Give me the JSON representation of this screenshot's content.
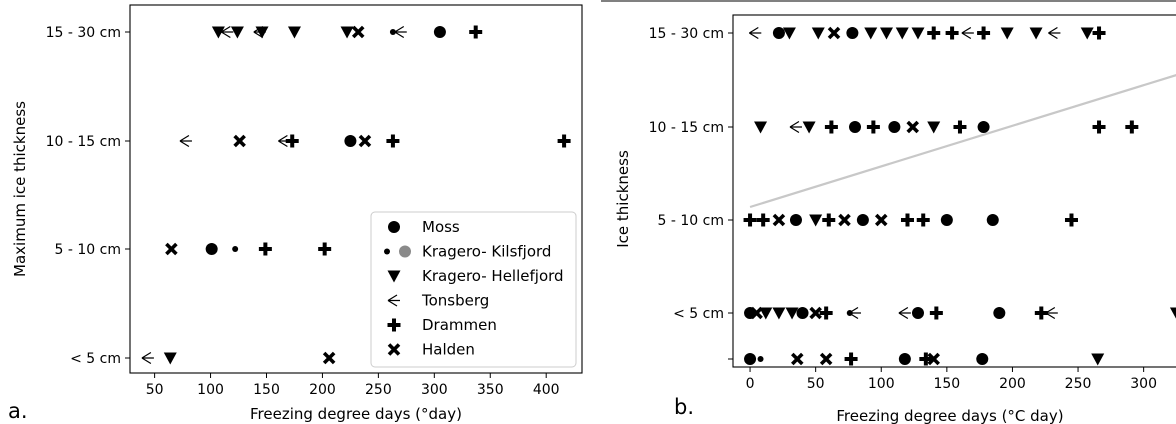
{
  "panel_labels": [
    "a.",
    "b."
  ],
  "marker_names": [
    "circle-marker",
    "small-circle-marker",
    "triangle-down-marker",
    "tri-left-marker",
    "plus-marker",
    "x-marker"
  ],
  "chart_data": [
    {
      "type": "scatter",
      "panel": "a.",
      "xlabel": "Freezing degree days (°day)",
      "ylabel": "Maximum ice thickness",
      "xlim": [
        28,
        432
      ],
      "x_ticks": [
        50,
        100,
        150,
        200,
        250,
        300,
        350,
        400
      ],
      "y_categories": [
        "< 5 cm",
        "5 - 10 cm",
        "10 - 15 cm",
        "15 - 30 cm"
      ],
      "grid": false,
      "legend": {
        "placement": "bottom-right",
        "entries": [
          "Moss",
          "Kragero- Kilsfjord",
          "Kragero- Hellefjord",
          "Tonsberg",
          "Drammen",
          "Halden"
        ]
      },
      "series": [
        {
          "name": "Moss",
          "marker": "circle",
          "points": [
            [
              101,
              "5 - 10 cm"
            ],
            [
              225,
              "10 - 15 cm"
            ],
            [
              305,
              "15 - 30 cm"
            ]
          ]
        },
        {
          "name": "Kragero- Kilsfjord",
          "marker": "small-circle",
          "points": [
            [
              122,
              "5 - 10 cm"
            ],
            [
              263,
              "15 - 30 cm"
            ]
          ]
        },
        {
          "name": "Kragero- Hellefjord",
          "marker": "triangle-down",
          "points": [
            [
              64,
              "< 5 cm"
            ],
            [
              107,
              "15 - 30 cm"
            ],
            [
              124,
              "15 - 30 cm"
            ],
            [
              146,
              "15 - 30 cm"
            ],
            [
              175,
              "15 - 30 cm"
            ],
            [
              222,
              "15 - 30 cm"
            ]
          ]
        },
        {
          "name": "Tonsberg",
          "marker": "tri-left",
          "points": [
            [
              44,
              "< 5 cm"
            ],
            [
              78,
              "10 - 15 cm"
            ],
            [
              115,
              "15 - 30 cm"
            ],
            [
              144,
              "15 - 30 cm"
            ],
            [
              166,
              "10 - 15 cm"
            ],
            [
              270,
              "15 - 30 cm"
            ]
          ]
        },
        {
          "name": "Drammen",
          "marker": "plus",
          "points": [
            [
              149,
              "5 - 10 cm"
            ],
            [
              173,
              "10 - 15 cm"
            ],
            [
              202,
              "5 - 10 cm"
            ],
            [
              263,
              "10 - 15 cm"
            ],
            [
              337,
              "15 - 30 cm"
            ],
            [
              416,
              "10 - 15 cm"
            ]
          ]
        },
        {
          "name": "Halden",
          "marker": "x",
          "points": [
            [
              65,
              "5 - 10 cm"
            ],
            [
              126,
              "10 - 15 cm"
            ],
            [
              206,
              "< 5 cm"
            ],
            [
              232,
              "15 - 30 cm"
            ],
            [
              238,
              "10 - 15 cm"
            ]
          ]
        }
      ]
    },
    {
      "type": "scatter",
      "panel": "b.",
      "xlabel": "Freezing degree days (°C day)",
      "ylabel": "Ice thickness",
      "xlim": [
        -13,
        330
      ],
      "x_ticks": [
        0,
        50,
        100,
        150,
        200,
        250,
        300
      ],
      "y_categories": [
        "",
        "< 5 cm",
        "5 - 10 cm",
        "10 - 15 cm",
        "15 - 30 cm"
      ],
      "grid": false,
      "trend_line": {
        "color": "#c8c8c8",
        "from": [
          0,
          5.9
        ],
        "to": [
          330,
          9.6
        ]
      },
      "points": [
        {
          "x": 0,
          "y": "< 5 cm",
          "marker": "circle"
        },
        {
          "x": 5,
          "y": "< 5 cm",
          "marker": "x"
        },
        {
          "x": 12,
          "y": "< 5 cm",
          "marker": "triangle-down"
        },
        {
          "x": 22,
          "y": "< 5 cm",
          "marker": "triangle-down"
        },
        {
          "x": 32,
          "y": "< 5 cm",
          "marker": "triangle-down"
        },
        {
          "x": 40,
          "y": "< 5 cm",
          "marker": "circle"
        },
        {
          "x": 50,
          "y": "< 5 cm",
          "marker": "x"
        },
        {
          "x": 58,
          "y": "< 5 cm",
          "marker": "plus"
        },
        {
          "x": 76,
          "y": "< 5 cm",
          "marker": "small-circle"
        },
        {
          "x": 80,
          "y": "< 5 cm",
          "marker": "tri-left"
        },
        {
          "x": 118,
          "y": "< 5 cm",
          "marker": "tri-left"
        },
        {
          "x": 128,
          "y": "< 5 cm",
          "marker": "circle"
        },
        {
          "x": 142,
          "y": "< 5 cm",
          "marker": "plus"
        },
        {
          "x": 190,
          "y": "< 5 cm",
          "marker": "circle"
        },
        {
          "x": 222,
          "y": "< 5 cm",
          "marker": "plus"
        },
        {
          "x": 230,
          "y": "< 5 cm",
          "marker": "tri-left"
        },
        {
          "x": 325,
          "y": "< 5 cm",
          "marker": "triangle-down"
        },
        {
          "x": 0,
          "y": "",
          "marker": "circle"
        },
        {
          "x": 8,
          "y": "",
          "marker": "small-circle"
        },
        {
          "x": 36,
          "y": "",
          "marker": "x"
        },
        {
          "x": 58,
          "y": "",
          "marker": "x"
        },
        {
          "x": 77,
          "y": "",
          "marker": "plus"
        },
        {
          "x": 118,
          "y": "",
          "marker": "circle"
        },
        {
          "x": 134,
          "y": "",
          "marker": "plus"
        },
        {
          "x": 140,
          "y": "",
          "marker": "x"
        },
        {
          "x": 177,
          "y": "",
          "marker": "circle"
        },
        {
          "x": 265,
          "y": "",
          "marker": "triangle-down"
        },
        {
          "x": 0,
          "y": "5 - 10 cm",
          "marker": "plus"
        },
        {
          "x": 10,
          "y": "5 - 10 cm",
          "marker": "plus"
        },
        {
          "x": 22,
          "y": "5 - 10 cm",
          "marker": "x"
        },
        {
          "x": 35,
          "y": "5 - 10 cm",
          "marker": "circle"
        },
        {
          "x": 50,
          "y": "5 - 10 cm",
          "marker": "triangle-down"
        },
        {
          "x": 60,
          "y": "5 - 10 cm",
          "marker": "plus"
        },
        {
          "x": 72,
          "y": "5 - 10 cm",
          "marker": "x"
        },
        {
          "x": 86,
          "y": "5 - 10 cm",
          "marker": "circle"
        },
        {
          "x": 100,
          "y": "5 - 10 cm",
          "marker": "x"
        },
        {
          "x": 120,
          "y": "5 - 10 cm",
          "marker": "plus"
        },
        {
          "x": 132,
          "y": "5 - 10 cm",
          "marker": "plus"
        },
        {
          "x": 150,
          "y": "5 - 10 cm",
          "marker": "circle"
        },
        {
          "x": 185,
          "y": "5 - 10 cm",
          "marker": "circle"
        },
        {
          "x": 245,
          "y": "5 - 10 cm",
          "marker": "plus"
        },
        {
          "x": 8,
          "y": "10 - 15 cm",
          "marker": "triangle-down"
        },
        {
          "x": 35,
          "y": "10 - 15 cm",
          "marker": "tri-left"
        },
        {
          "x": 45,
          "y": "10 - 15 cm",
          "marker": "triangle-down"
        },
        {
          "x": 62,
          "y": "10 - 15 cm",
          "marker": "plus"
        },
        {
          "x": 80,
          "y": "10 - 15 cm",
          "marker": "circle"
        },
        {
          "x": 94,
          "y": "10 - 15 cm",
          "marker": "plus"
        },
        {
          "x": 110,
          "y": "10 - 15 cm",
          "marker": "circle"
        },
        {
          "x": 124,
          "y": "10 - 15 cm",
          "marker": "x"
        },
        {
          "x": 140,
          "y": "10 - 15 cm",
          "marker": "triangle-down"
        },
        {
          "x": 160,
          "y": "10 - 15 cm",
          "marker": "plus"
        },
        {
          "x": 178,
          "y": "10 - 15 cm",
          "marker": "circle"
        },
        {
          "x": 266,
          "y": "10 - 15 cm",
          "marker": "plus"
        },
        {
          "x": 291,
          "y": "10 - 15 cm",
          "marker": "plus"
        },
        {
          "x": 4,
          "y": "15 - 30 cm",
          "marker": "tri-left"
        },
        {
          "x": 22,
          "y": "15 - 30 cm",
          "marker": "circle"
        },
        {
          "x": 30,
          "y": "15 - 30 cm",
          "marker": "triangle-down"
        },
        {
          "x": 52,
          "y": "15 - 30 cm",
          "marker": "triangle-down"
        },
        {
          "x": 64,
          "y": "15 - 30 cm",
          "marker": "x"
        },
        {
          "x": 78,
          "y": "15 - 30 cm",
          "marker": "circle"
        },
        {
          "x": 92,
          "y": "15 - 30 cm",
          "marker": "triangle-down"
        },
        {
          "x": 104,
          "y": "15 - 30 cm",
          "marker": "triangle-down"
        },
        {
          "x": 116,
          "y": "15 - 30 cm",
          "marker": "triangle-down"
        },
        {
          "x": 128,
          "y": "15 - 30 cm",
          "marker": "triangle-down"
        },
        {
          "x": 140,
          "y": "15 - 30 cm",
          "marker": "plus"
        },
        {
          "x": 154,
          "y": "15 - 30 cm",
          "marker": "plus"
        },
        {
          "x": 166,
          "y": "15 - 30 cm",
          "marker": "tri-left"
        },
        {
          "x": 178,
          "y": "15 - 30 cm",
          "marker": "plus"
        },
        {
          "x": 196,
          "y": "15 - 30 cm",
          "marker": "triangle-down"
        },
        {
          "x": 218,
          "y": "15 - 30 cm",
          "marker": "triangle-down"
        },
        {
          "x": 232,
          "y": "15 - 30 cm",
          "marker": "tri-left"
        },
        {
          "x": 257,
          "y": "15 - 30 cm",
          "marker": "triangle-down"
        },
        {
          "x": 266,
          "y": "15 - 30 cm",
          "marker": "plus"
        }
      ]
    }
  ]
}
